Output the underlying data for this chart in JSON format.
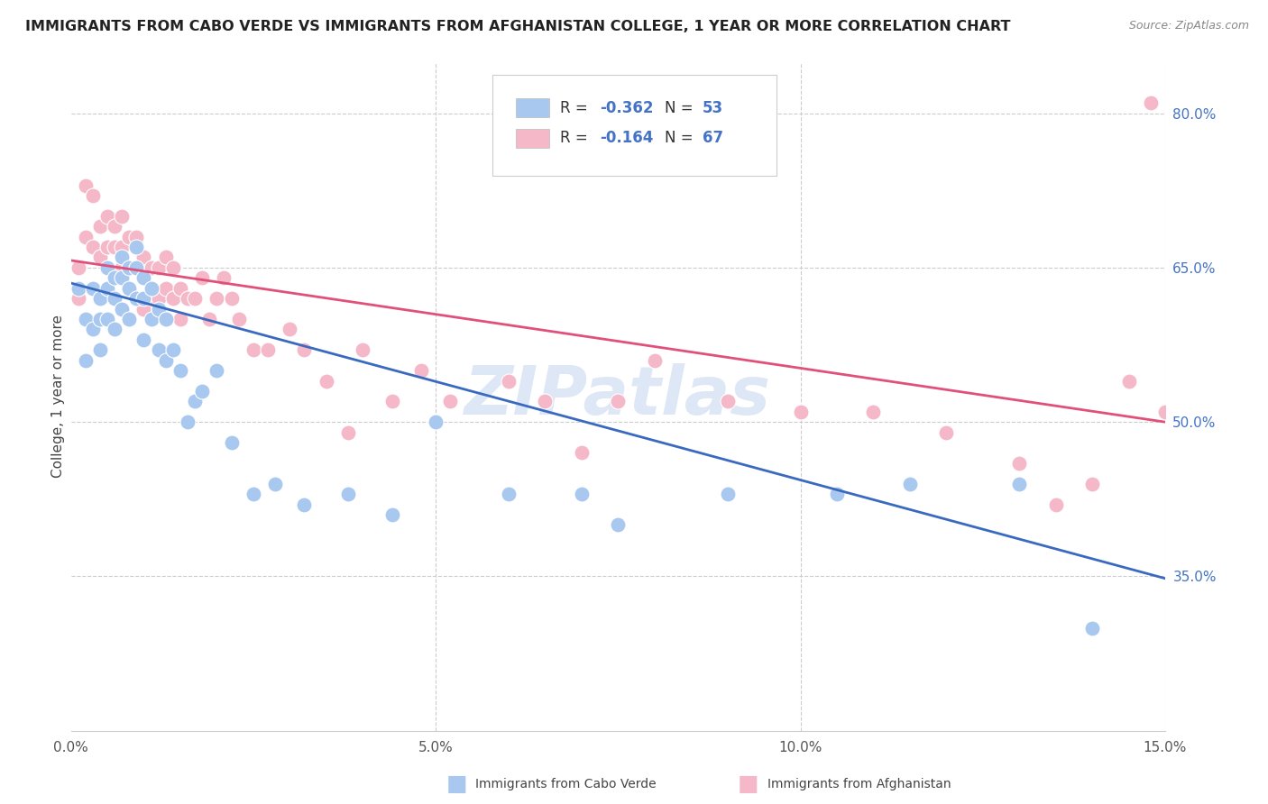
{
  "title": "IMMIGRANTS FROM CABO VERDE VS IMMIGRANTS FROM AFGHANISTAN COLLEGE, 1 YEAR OR MORE CORRELATION CHART",
  "source": "Source: ZipAtlas.com",
  "ylabel_label": "College, 1 year or more",
  "xmin": 0.0,
  "xmax": 0.15,
  "ymin": 0.2,
  "ymax": 0.85,
  "yticks": [
    0.35,
    0.5,
    0.65,
    0.8
  ],
  "ytick_labels": [
    "35.0%",
    "50.0%",
    "65.0%",
    "80.0%"
  ],
  "xticks": [
    0.0,
    0.05,
    0.1,
    0.15
  ],
  "xtick_labels": [
    "0.0%",
    "5.0%",
    "10.0%",
    "15.0%"
  ],
  "cabo_verde_R": "-0.362",
  "cabo_verde_N": "53",
  "afghanistan_R": "-0.164",
  "afghanistan_N": "67",
  "cabo_verde_color": "#a8c8f0",
  "afghanistan_color": "#f4b8c8",
  "cabo_verde_line_color": "#3a6abf",
  "afghanistan_line_color": "#e0507a",
  "watermark": "ZIPatlas",
  "legend_label_cabo": "Immigrants from Cabo Verde",
  "legend_label_afghan": "Immigrants from Afghanistan",
  "cabo_verde_x": [
    0.001,
    0.002,
    0.002,
    0.003,
    0.003,
    0.004,
    0.004,
    0.004,
    0.005,
    0.005,
    0.005,
    0.006,
    0.006,
    0.006,
    0.007,
    0.007,
    0.007,
    0.008,
    0.008,
    0.008,
    0.009,
    0.009,
    0.009,
    0.01,
    0.01,
    0.01,
    0.011,
    0.011,
    0.012,
    0.012,
    0.013,
    0.013,
    0.014,
    0.015,
    0.016,
    0.017,
    0.018,
    0.02,
    0.022,
    0.025,
    0.028,
    0.032,
    0.038,
    0.044,
    0.05,
    0.06,
    0.07,
    0.075,
    0.09,
    0.105,
    0.115,
    0.13,
    0.14
  ],
  "cabo_verde_y": [
    0.63,
    0.6,
    0.56,
    0.63,
    0.59,
    0.62,
    0.6,
    0.57,
    0.65,
    0.63,
    0.6,
    0.64,
    0.62,
    0.59,
    0.66,
    0.64,
    0.61,
    0.65,
    0.63,
    0.6,
    0.67,
    0.65,
    0.62,
    0.64,
    0.62,
    0.58,
    0.63,
    0.6,
    0.61,
    0.57,
    0.6,
    0.56,
    0.57,
    0.55,
    0.5,
    0.52,
    0.53,
    0.55,
    0.48,
    0.43,
    0.44,
    0.42,
    0.43,
    0.41,
    0.5,
    0.43,
    0.43,
    0.4,
    0.43,
    0.43,
    0.44,
    0.44,
    0.3
  ],
  "afghanistan_x": [
    0.001,
    0.001,
    0.002,
    0.002,
    0.003,
    0.003,
    0.004,
    0.004,
    0.005,
    0.005,
    0.006,
    0.006,
    0.006,
    0.007,
    0.007,
    0.007,
    0.008,
    0.008,
    0.009,
    0.009,
    0.009,
    0.01,
    0.01,
    0.01,
    0.011,
    0.011,
    0.012,
    0.012,
    0.013,
    0.013,
    0.014,
    0.014,
    0.015,
    0.015,
    0.016,
    0.017,
    0.018,
    0.019,
    0.02,
    0.021,
    0.022,
    0.023,
    0.025,
    0.027,
    0.03,
    0.032,
    0.035,
    0.038,
    0.04,
    0.044,
    0.048,
    0.052,
    0.06,
    0.065,
    0.07,
    0.075,
    0.08,
    0.09,
    0.1,
    0.11,
    0.12,
    0.13,
    0.135,
    0.14,
    0.145,
    0.148,
    0.15
  ],
  "afghanistan_y": [
    0.65,
    0.62,
    0.73,
    0.68,
    0.72,
    0.67,
    0.69,
    0.66,
    0.7,
    0.67,
    0.69,
    0.67,
    0.64,
    0.7,
    0.67,
    0.65,
    0.68,
    0.65,
    0.68,
    0.65,
    0.62,
    0.66,
    0.64,
    0.61,
    0.65,
    0.62,
    0.65,
    0.62,
    0.66,
    0.63,
    0.65,
    0.62,
    0.63,
    0.6,
    0.62,
    0.62,
    0.64,
    0.6,
    0.62,
    0.64,
    0.62,
    0.6,
    0.57,
    0.57,
    0.59,
    0.57,
    0.54,
    0.49,
    0.57,
    0.52,
    0.55,
    0.52,
    0.54,
    0.52,
    0.47,
    0.52,
    0.56,
    0.52,
    0.51,
    0.51,
    0.49,
    0.46,
    0.42,
    0.44,
    0.54,
    0.81,
    0.51
  ]
}
